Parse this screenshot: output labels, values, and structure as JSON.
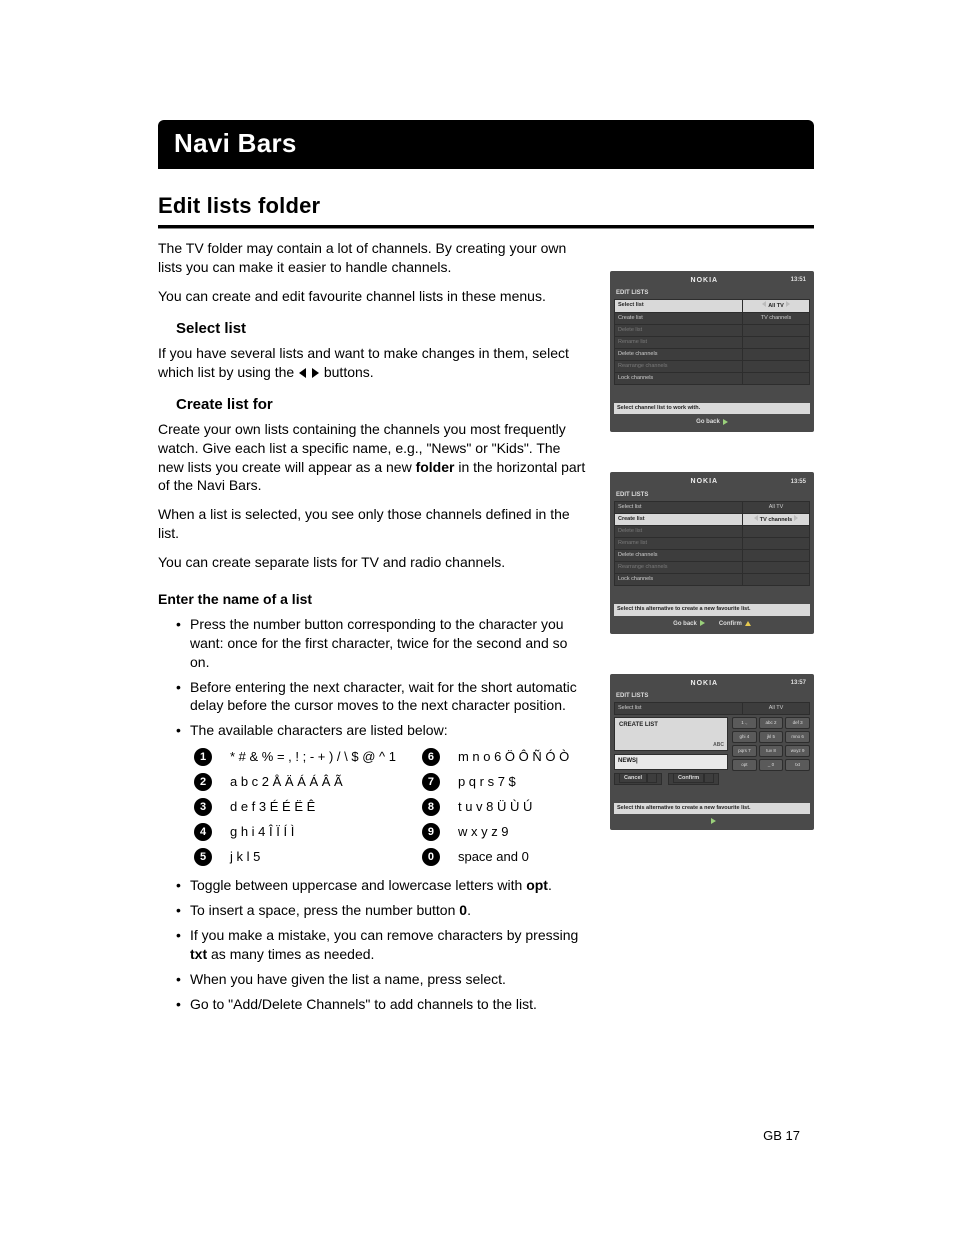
{
  "titlebar": "Navi Bars",
  "section": "Edit lists folder",
  "intro1": "The TV folder may contain a lot of channels. By creating your own lists you can make it easier to handle channels.",
  "intro2": "You can create and edit favourite channel lists in these menus.",
  "selectlist": {
    "h": "Select list",
    "p_a": "If you have several lists and want to make changes in them, select which list by using the ",
    "p_b": " buttons."
  },
  "createlist": {
    "h": "Create list for",
    "p1_a": "Create your own lists containing the channels you most frequently watch. Give each list a specific name, e.g., \"News\" or \"Kids\". The new lists you create will appear as a new ",
    "p1_bold": "folder",
    "p1_b": " in the horizontal part of the Navi Bars.",
    "p2": "When a list is selected, you see only those channels defined in the list.",
    "p3": "You can create separate lists for TV and radio channels."
  },
  "enter": {
    "h": "Enter the name of a list",
    "b1": "Press the number button corresponding to the character you want: once for the first character, twice for the second and so on.",
    "b2": "Before entering the next character, wait for the short automatic delay before the cursor moves to the next character position.",
    "b3": "The available characters are listed below:"
  },
  "chars": {
    "left": [
      {
        "n": "1",
        "t": "* # & % = , ! ; - + ) /  \\ $ @ ^ 1"
      },
      {
        "n": "2",
        "t": "a b c 2 Å Ä Á Á Â Ã"
      },
      {
        "n": "3",
        "t": "d e f 3 É É Ë Ê"
      },
      {
        "n": "4",
        "t": "g h i 4 Î Ï Í Ì"
      },
      {
        "n": "5",
        "t": "j k l 5"
      }
    ],
    "right": [
      {
        "n": "6",
        "t": "m n o 6 Ö Ô Ñ Ó Ò"
      },
      {
        "n": "7",
        "t": "p q r s 7 $"
      },
      {
        "n": "8",
        "t": "t u v 8 Ü Ù Ú"
      },
      {
        "n": "9",
        "t": "w x y z 9"
      },
      {
        "n": "0",
        "t": "space and 0"
      }
    ]
  },
  "after": {
    "a1_a": "Toggle between uppercase and lowercase letters with ",
    "a1_bold": "opt",
    "a1_b": ".",
    "a2_a": "To insert a space, press the number button ",
    "a2_bold": "0",
    "a2_b": ".",
    "a3_a": "If you make a mistake, you can remove characters by pressing ",
    "a3_bold": "txt",
    "a3_b": " as many times as needed.",
    "a4": "When you have given the list a name, press select.",
    "a5": "Go to \"Add/Delete Channels\" to add channels to the list."
  },
  "pagefoot": "GB 17",
  "shots": {
    "brand": "NOKIA",
    "goback": "Go back",
    "confirm": "Confirm",
    "s1": {
      "time": "13:51",
      "title": "EDIT LISTS",
      "rows": [
        {
          "l": "Select list",
          "r": "All TV",
          "sel": true,
          "arrows": true,
          "dim": false
        },
        {
          "l": "Create list",
          "r": "TV channels",
          "dim": false
        },
        {
          "l": "Delete list",
          "dim": true
        },
        {
          "l": "Rename list",
          "dim": true
        },
        {
          "l": "Delete channels",
          "dim": false
        },
        {
          "l": "Rearrange channels",
          "dim": true
        },
        {
          "l": "Lock channels",
          "dim": false
        }
      ],
      "info": "Select channel list to work with."
    },
    "s2": {
      "time": "13:55",
      "title": "EDIT LISTS",
      "rows": [
        {
          "l": "Select list",
          "r": "All TV",
          "dim": false
        },
        {
          "l": "Create list",
          "r": "TV channels",
          "sel": true,
          "arrows": true,
          "dim": false
        },
        {
          "l": "Delete list",
          "dim": true
        },
        {
          "l": "Rename list",
          "dim": true
        },
        {
          "l": "Delete channels",
          "dim": false
        },
        {
          "l": "Rearrange channels",
          "dim": true
        },
        {
          "l": "Lock channels",
          "dim": false
        }
      ],
      "info": "Select this alternative to create a new favourite list."
    },
    "s3": {
      "time": "13:57",
      "title": "EDIT LISTS",
      "toprow": {
        "l": "Select list",
        "r": "All TV"
      },
      "create": "CREATE LIST",
      "abc": "ABC",
      "input": "NEWS|",
      "cancel": "Cancel",
      "confirm": "Confirm",
      "keys": [
        "1 .,",
        "abc 2",
        "def 3",
        "ghi 4",
        "jkl 5",
        "mno 6",
        "pqrs 7",
        "tuv 8",
        "wxyz 9",
        "opt",
        "_ 0",
        "txt"
      ],
      "info": "Select this alternative to create a new favourite list."
    }
  }
}
